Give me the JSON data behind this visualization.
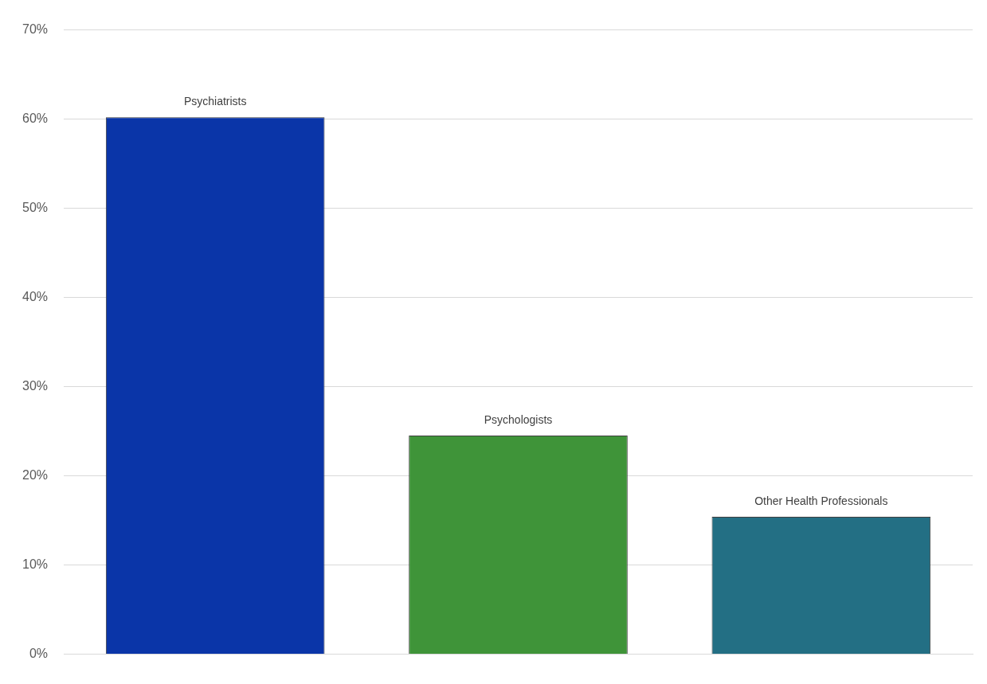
{
  "chart_data": {
    "type": "bar",
    "categories": [
      "Psychiatrists",
      "Psychologists",
      "Other Health Professionals"
    ],
    "values": [
      60.2,
      24.5,
      15.4
    ],
    "colors": [
      "#0a35a8",
      "#3f9439",
      "#236f84"
    ],
    "ylim": [
      0,
      70
    ],
    "yticks": [
      {
        "value": 0,
        "label": "0%"
      },
      {
        "value": 10,
        "label": "10%"
      },
      {
        "value": 20,
        "label": "20%"
      },
      {
        "value": 30,
        "label": "30%"
      },
      {
        "value": 40,
        "label": "40%"
      },
      {
        "value": 50,
        "label": "50%"
      },
      {
        "value": 60,
        "label": "60%"
      },
      {
        "value": 70,
        "label": "70%"
      }
    ],
    "grid": "y",
    "legend": false,
    "tick_labels": "y"
  }
}
